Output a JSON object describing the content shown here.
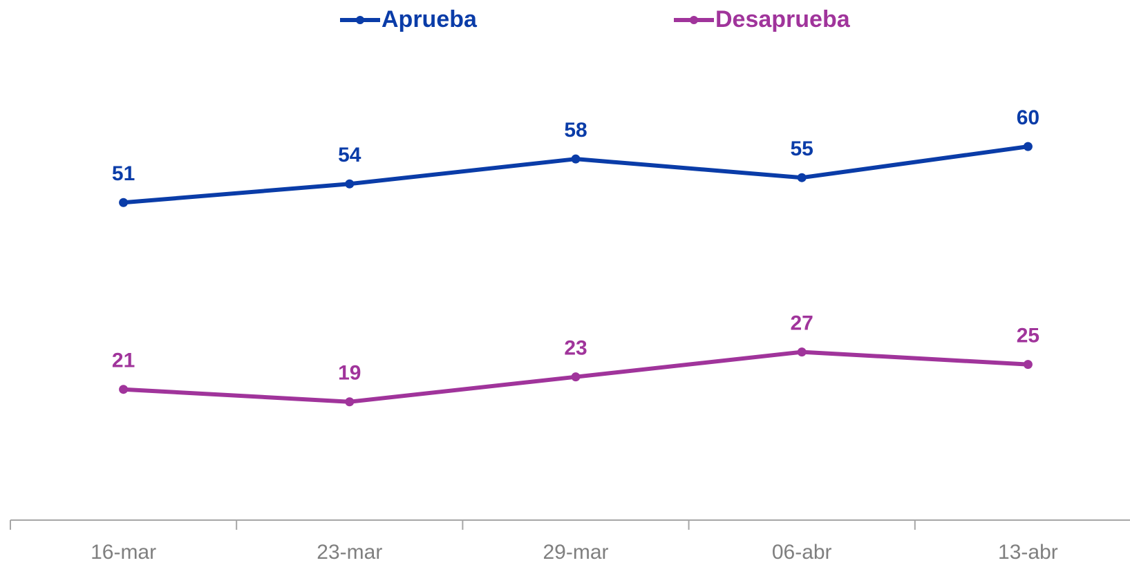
{
  "chart_data": {
    "type": "line",
    "categories": [
      "16-mar",
      "23-mar",
      "29-mar",
      "06-abr",
      "13-abr"
    ],
    "series": [
      {
        "name": "Aprueba",
        "color": "#0a3ca8",
        "values": [
          51,
          54,
          58,
          55,
          60
        ]
      },
      {
        "name": "Desaprueba",
        "color": "#a0349b",
        "values": [
          21,
          19,
          23,
          27,
          25
        ]
      }
    ],
    "ylim": [
      0,
      70
    ],
    "legend": "top"
  }
}
